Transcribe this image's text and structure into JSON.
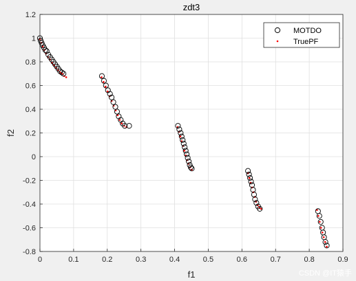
{
  "chart_data": {
    "type": "scatter",
    "title": "zdt3",
    "xlabel": "f1",
    "ylabel": "f2",
    "xlim": [
      0,
      0.9
    ],
    "ylim": [
      -0.8,
      1.2
    ],
    "xticks": [
      "0",
      "0.1",
      "0.2",
      "0.3",
      "0.4",
      "0.5",
      "0.6",
      "0.7",
      "0.8",
      "0.9"
    ],
    "yticks": [
      "-0.8",
      "-0.6",
      "-0.4",
      "-0.2",
      "0",
      "0.2",
      "0.4",
      "0.6",
      "0.8",
      "1",
      "1.2"
    ],
    "grid": true,
    "legend_position": "top-right",
    "series": [
      {
        "name": "MOTDO",
        "marker": "circle",
        "color": "#000000",
        "points": [
          [
            0.0,
            1.0
          ],
          [
            0.002,
            0.98
          ],
          [
            0.005,
            0.96
          ],
          [
            0.008,
            0.94
          ],
          [
            0.012,
            0.92
          ],
          [
            0.016,
            0.9
          ],
          [
            0.02,
            0.89
          ],
          [
            0.025,
            0.86
          ],
          [
            0.03,
            0.84
          ],
          [
            0.035,
            0.82
          ],
          [
            0.04,
            0.8
          ],
          [
            0.045,
            0.78
          ],
          [
            0.05,
            0.76
          ],
          [
            0.055,
            0.74
          ],
          [
            0.06,
            0.72
          ],
          [
            0.065,
            0.71
          ],
          [
            0.07,
            0.7
          ],
          [
            0.184,
            0.68
          ],
          [
            0.19,
            0.64
          ],
          [
            0.196,
            0.6
          ],
          [
            0.202,
            0.56
          ],
          [
            0.208,
            0.53
          ],
          [
            0.213,
            0.5
          ],
          [
            0.218,
            0.46
          ],
          [
            0.224,
            0.42
          ],
          [
            0.229,
            0.38
          ],
          [
            0.234,
            0.34
          ],
          [
            0.24,
            0.31
          ],
          [
            0.246,
            0.28
          ],
          [
            0.252,
            0.26
          ],
          [
            0.265,
            0.26
          ],
          [
            0.41,
            0.26
          ],
          [
            0.414,
            0.23
          ],
          [
            0.418,
            0.2
          ],
          [
            0.421,
            0.17
          ],
          [
            0.424,
            0.14
          ],
          [
            0.427,
            0.11
          ],
          [
            0.43,
            0.08
          ],
          [
            0.433,
            0.05
          ],
          [
            0.436,
            0.02
          ],
          [
            0.439,
            -0.01
          ],
          [
            0.442,
            -0.04
          ],
          [
            0.445,
            -0.07
          ],
          [
            0.448,
            -0.09
          ],
          [
            0.451,
            -0.1
          ],
          [
            0.618,
            -0.12
          ],
          [
            0.621,
            -0.15
          ],
          [
            0.624,
            -0.18
          ],
          [
            0.627,
            -0.21
          ],
          [
            0.63,
            -0.24
          ],
          [
            0.633,
            -0.28
          ],
          [
            0.636,
            -0.32
          ],
          [
            0.639,
            -0.36
          ],
          [
            0.643,
            -0.39
          ],
          [
            0.648,
            -0.42
          ],
          [
            0.653,
            -0.44
          ],
          [
            0.826,
            -0.46
          ],
          [
            0.83,
            -0.5
          ],
          [
            0.834,
            -0.55
          ],
          [
            0.838,
            -0.6
          ],
          [
            0.841,
            -0.64
          ],
          [
            0.844,
            -0.68
          ],
          [
            0.848,
            -0.72
          ],
          [
            0.852,
            -0.75
          ]
        ]
      },
      {
        "name": "TruePF",
        "marker": "dot",
        "color": "#ff0000",
        "points": [
          [
            0.0,
            0.99
          ],
          [
            0.004,
            0.96
          ],
          [
            0.008,
            0.93
          ],
          [
            0.013,
            0.9
          ],
          [
            0.018,
            0.87
          ],
          [
            0.024,
            0.84
          ],
          [
            0.03,
            0.82
          ],
          [
            0.036,
            0.79
          ],
          [
            0.042,
            0.77
          ],
          [
            0.048,
            0.75
          ],
          [
            0.054,
            0.73
          ],
          [
            0.06,
            0.71
          ],
          [
            0.066,
            0.7
          ],
          [
            0.072,
            0.68
          ],
          [
            0.078,
            0.67
          ],
          [
            0.183,
            0.67
          ],
          [
            0.189,
            0.63
          ],
          [
            0.195,
            0.59
          ],
          [
            0.201,
            0.55
          ],
          [
            0.207,
            0.51
          ],
          [
            0.213,
            0.47
          ],
          [
            0.219,
            0.43
          ],
          [
            0.225,
            0.39
          ],
          [
            0.231,
            0.35
          ],
          [
            0.237,
            0.31
          ],
          [
            0.243,
            0.28
          ],
          [
            0.25,
            0.26
          ],
          [
            0.257,
            0.25
          ],
          [
            0.409,
            0.25
          ],
          [
            0.413,
            0.21
          ],
          [
            0.417,
            0.17
          ],
          [
            0.421,
            0.13
          ],
          [
            0.425,
            0.09
          ],
          [
            0.429,
            0.05
          ],
          [
            0.433,
            0.01
          ],
          [
            0.437,
            -0.03
          ],
          [
            0.441,
            -0.06
          ],
          [
            0.446,
            -0.09
          ],
          [
            0.451,
            -0.11
          ],
          [
            0.618,
            -0.14
          ],
          [
            0.622,
            -0.18
          ],
          [
            0.626,
            -0.22
          ],
          [
            0.63,
            -0.26
          ],
          [
            0.634,
            -0.3
          ],
          [
            0.638,
            -0.34
          ],
          [
            0.642,
            -0.38
          ],
          [
            0.647,
            -0.41
          ],
          [
            0.652,
            -0.43
          ],
          [
            0.657,
            -0.44
          ],
          [
            0.823,
            -0.45
          ],
          [
            0.827,
            -0.5
          ],
          [
            0.831,
            -0.55
          ],
          [
            0.835,
            -0.6
          ],
          [
            0.839,
            -0.64
          ],
          [
            0.843,
            -0.68
          ],
          [
            0.847,
            -0.72
          ],
          [
            0.852,
            -0.76
          ]
        ]
      }
    ]
  },
  "watermark": "CSDN @IT猿手"
}
